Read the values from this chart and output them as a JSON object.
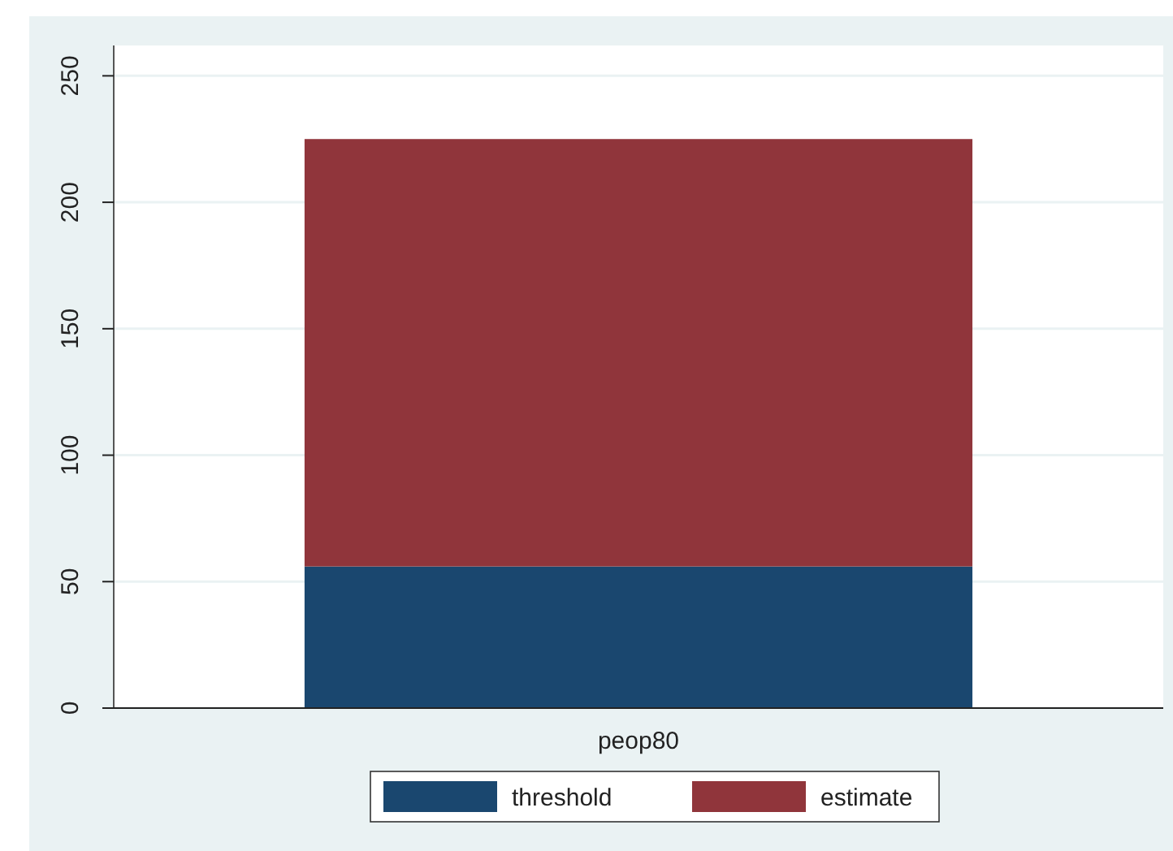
{
  "chart_data": {
    "type": "bar",
    "stacked": true,
    "categories": [
      "peop80"
    ],
    "series": [
      {
        "name": "threshold",
        "color": "#1a476f",
        "values": [
          56
        ]
      },
      {
        "name": "estimate",
        "color": "#90353b",
        "values": [
          169
        ]
      }
    ],
    "ylim": [
      0,
      262
    ],
    "yticks": [
      0,
      50,
      100,
      150,
      200,
      250
    ],
    "grid": "y",
    "legend": "bottom"
  }
}
